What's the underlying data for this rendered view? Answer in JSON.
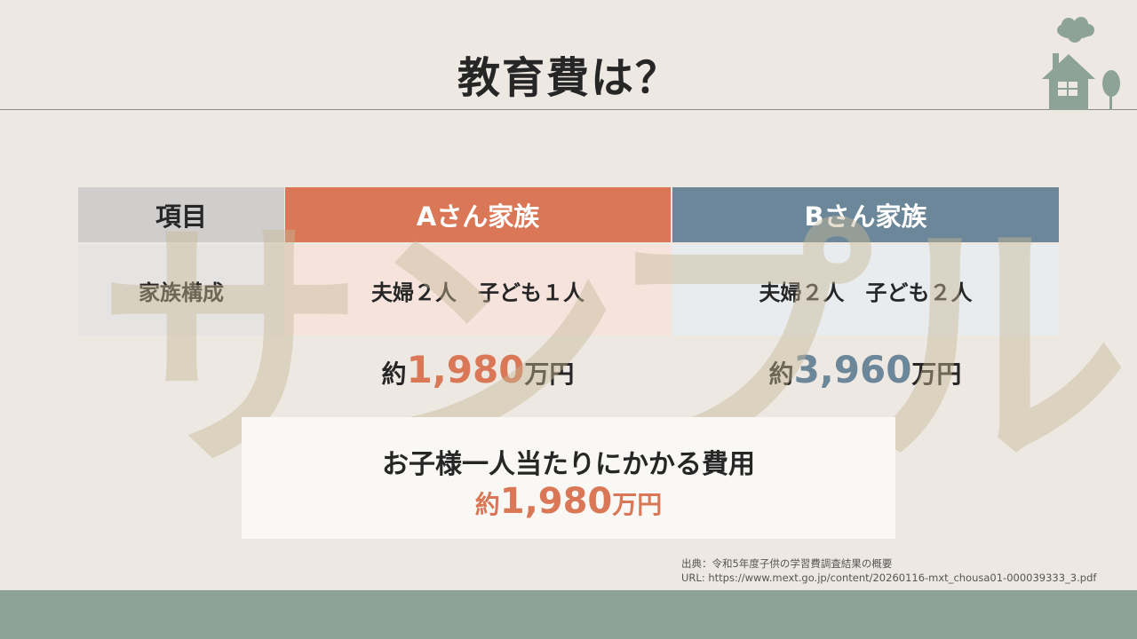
{
  "title": "教育費は？",
  "watermark": "サンプル",
  "table": {
    "headers": [
      "項目",
      "Aさん家族",
      "Bさん家族"
    ],
    "row": {
      "label": "家族構成",
      "a": "夫婦２人　子ども１人",
      "b": "夫婦２人　子ども２人"
    }
  },
  "totals": {
    "a": {
      "prefix": "約",
      "value": "1,980",
      "unit": "万円"
    },
    "b": {
      "prefix": "約",
      "value": "3,960",
      "unit": "万円"
    }
  },
  "per_child": {
    "label": "お子様一人当たりにかかる費用",
    "prefix": "約",
    "value": "1,980",
    "unit": "万円"
  },
  "source": {
    "line1": "出典：令和5年度子供の学習費調査結果の概要",
    "line2": "URL: https://www.mext.go.jp/content/20260116-mxt_chousa01-000039333_3.pdf"
  },
  "colors": {
    "a": "#d97756",
    "b": "#6b8799",
    "footer": "#8ea398"
  }
}
